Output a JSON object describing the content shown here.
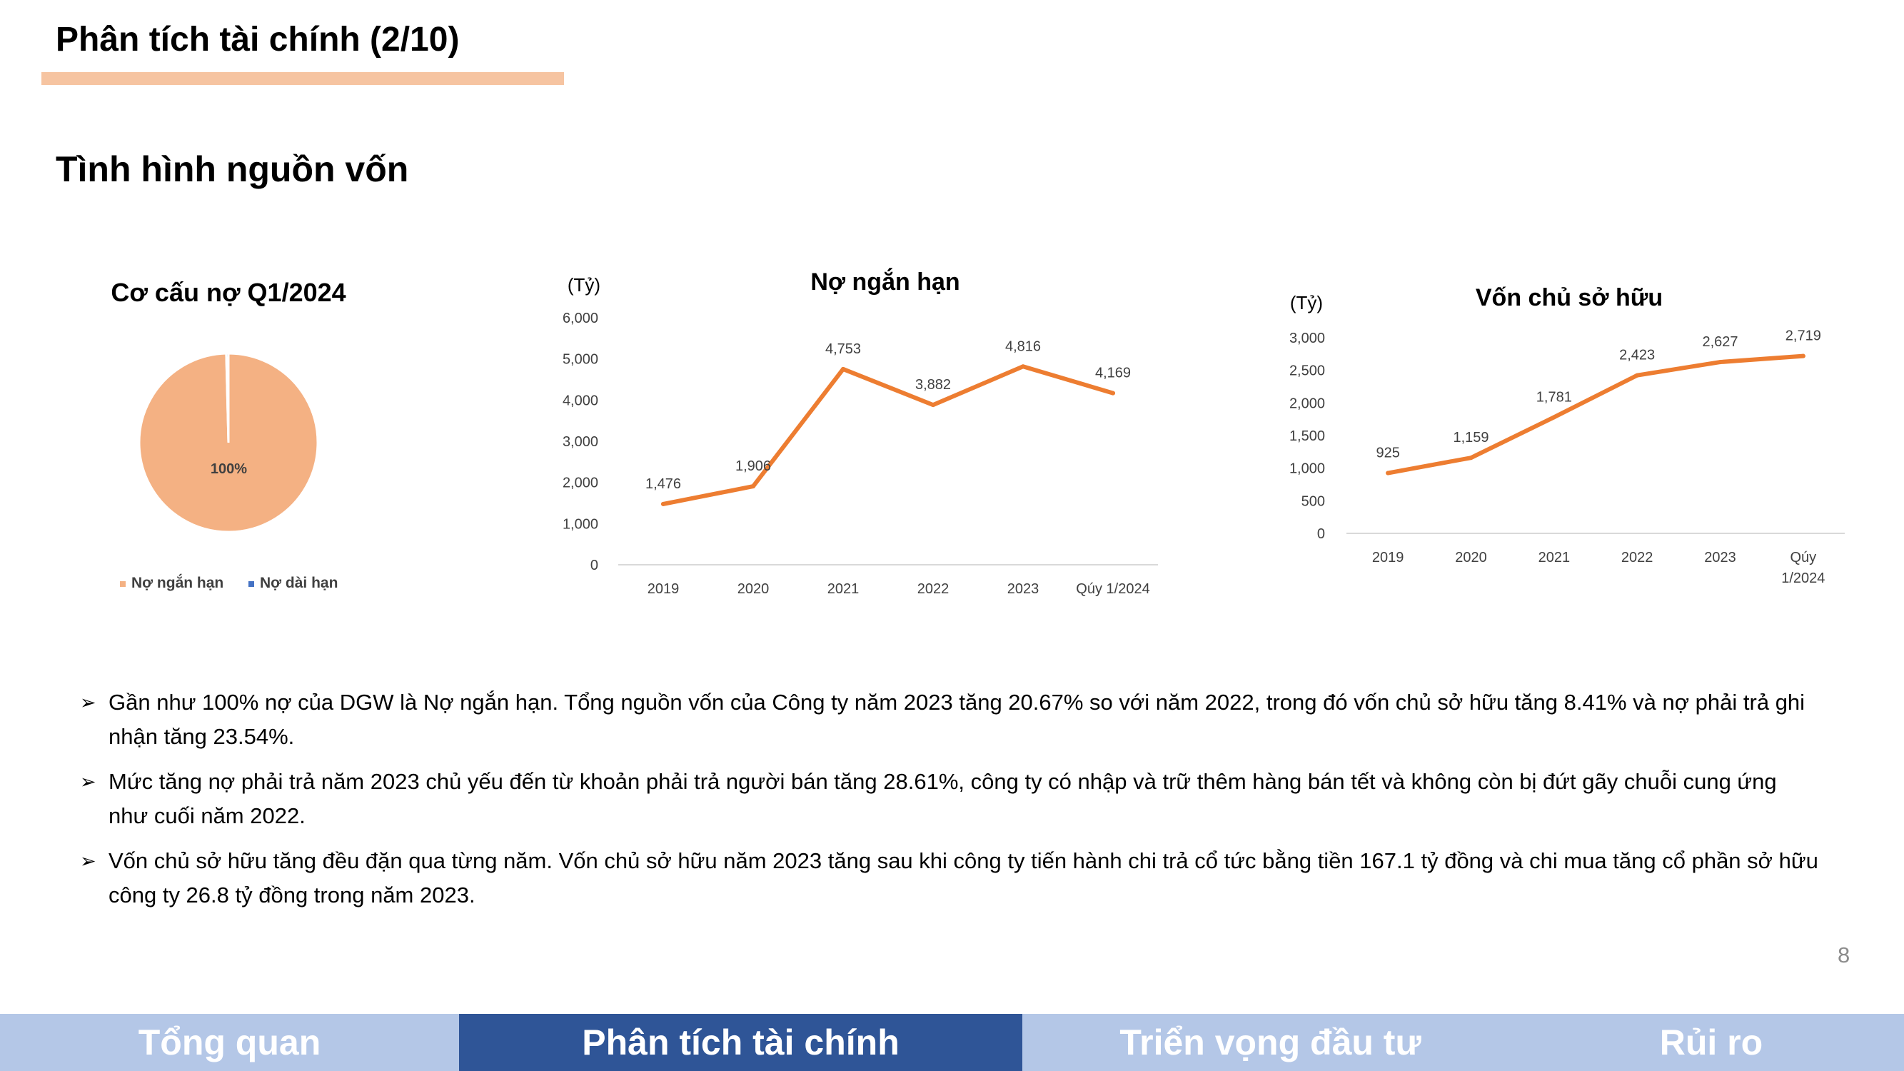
{
  "header": {
    "title": "Phân tích tài chính (2/10)",
    "section_title": "Tình hình nguồn vốn",
    "accent_color": "#f6c4a1"
  },
  "chart_data": [
    {
      "type": "pie",
      "title": "Cơ cấu nợ Q1/2024",
      "slices": [
        {
          "label": "Nợ ngắn hạn",
          "value": 99.6,
          "data_label": "100%",
          "color": "#f4b183"
        },
        {
          "label": "Nợ dài hạn",
          "value": 0.4,
          "data_label": "",
          "color": "#4472c4"
        }
      ],
      "legend": "bottom"
    },
    {
      "type": "line",
      "title": "Nợ ngắn hạn",
      "unit_label": "(Tỷ)",
      "categories": [
        "2019",
        "2020",
        "2021",
        "2022",
        "2023",
        "Qúy 1/2024"
      ],
      "values": [
        1476,
        1906,
        4753,
        3882,
        4816,
        4169
      ],
      "data_labels": [
        "1,476",
        "1,906",
        "4,753",
        "3,882",
        "4,816",
        "4,169"
      ],
      "yticks": [
        "0",
        "1,000",
        "2,000",
        "3,000",
        "4,000",
        "5,000",
        "6,000"
      ],
      "ylim": [
        0,
        6000
      ],
      "color": "#ed7d31",
      "grid": false
    },
    {
      "type": "line",
      "title": "Vốn chủ sở hữu",
      "unit_label": "(Tỷ)",
      "categories": [
        [
          "2019"
        ],
        [
          "2020"
        ],
        [
          "2021"
        ],
        [
          "2022"
        ],
        [
          "2023"
        ],
        [
          "Qúy",
          "1/2024"
        ]
      ],
      "values": [
        925,
        1159,
        1781,
        2423,
        2627,
        2719
      ],
      "data_labels": [
        "925",
        "1,159",
        "1,781",
        "2,423",
        "2,627",
        "2,719"
      ],
      "yticks": [
        "0",
        "500",
        "1,000",
        "1,500",
        "2,000",
        "2,500",
        "3,000"
      ],
      "ylim": [
        0,
        3000
      ],
      "color": "#ed7d31",
      "grid": false
    }
  ],
  "bullets": [
    {
      "marker": "➢",
      "text": "Gần như 100% nợ của DGW là Nợ ngắn hạn. Tổng nguồn vốn của Công ty năm 2023 tăng 20.67% so với năm 2022, trong đó vốn chủ sở hữu tăng 8.41% và nợ phải trả ghi nhận tăng 23.54%."
    },
    {
      "marker": "➢",
      "text": "Mức tăng nợ phải trả năm 2023 chủ yếu đến từ khoản phải trả người bán tăng 28.61%, công ty có nhập và trữ thêm hàng bán tết và không còn bị đứt gãy chuỗi cung ứng như cuối năm 2022."
    },
    {
      "marker": "➢",
      "text": "Vốn chủ sở hữu tăng đều đặn qua từng năm. Vốn chủ sở hữu năm 2023 tăng sau khi công ty tiến hành chi trả cổ tức bằng tiền 167.1 tỷ đồng và chi mua tăng cổ phần sở hữu công ty 26.8 tỷ đồng trong năm 2023."
    }
  ],
  "page_number": "8",
  "nav": {
    "tabs": [
      {
        "label": "Tổng quan",
        "active": false
      },
      {
        "label": "Phân tích tài chính",
        "active": true
      },
      {
        "label": "Triển vọng đầu tư",
        "active": false
      },
      {
        "label": "Rủi ro",
        "active": false
      }
    ],
    "active_color": "#2f5597",
    "inactive_color": "#b4c7e7"
  }
}
